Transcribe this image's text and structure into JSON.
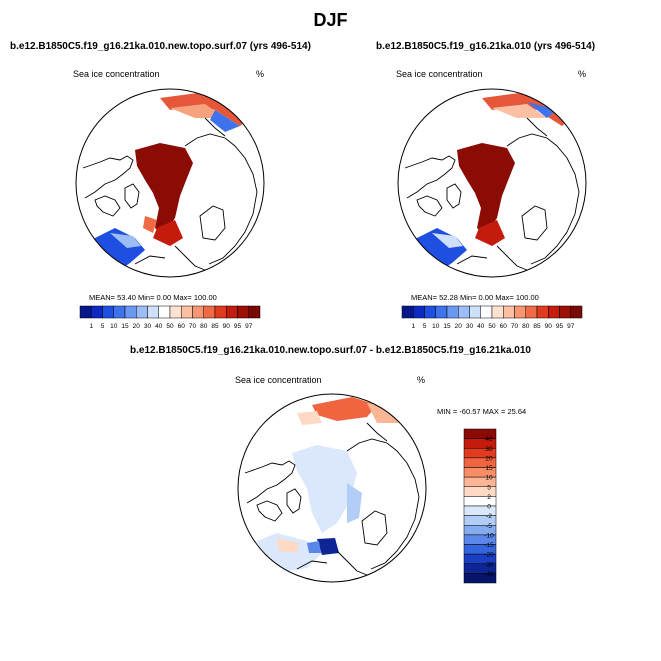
{
  "page": {
    "title": "DJF"
  },
  "panels": [
    {
      "title": "b.e12.B1850C5.f19_g16.21ka.010.new.topo.surf.07 (yrs 496-514)",
      "variable": "Sea ice concentration",
      "units": "%",
      "stats": "MEAN=  53.40  Min=   0.00  Max= 100.00"
    },
    {
      "title": "b.e12.B1850C5.f19_g16.21ka.010 (yrs 496-514)",
      "variable": "Sea ice concentration",
      "units": "%",
      "stats": "MEAN=  52.28  Min=   0.00  Max= 100.00"
    }
  ],
  "diff_panel": {
    "title": "b.e12.B1850C5.f19_g16.21ka.010.new.topo.surf.07 - b.e12.B1850C5.f19_g16.21ka.010",
    "variable": "Sea ice concentration",
    "units": "%",
    "stats": "MIN = -60.57 MAX =  25.64"
  },
  "colorbar_abs": {
    "levels": [
      "1",
      "5",
      "10",
      "15",
      "20",
      "30",
      "40",
      "50",
      "60",
      "70",
      "80",
      "85",
      "90",
      "95",
      "97"
    ],
    "colors": [
      "#08178a",
      "#0c2ac2",
      "#1f4fe0",
      "#3f73ee",
      "#6b98f2",
      "#9dbdf6",
      "#cfe0fb",
      "#ffffff",
      "#fde2d2",
      "#fbbfa3",
      "#f79673",
      "#f06a46",
      "#e03b1f",
      "#c41b0c",
      "#9c0f05",
      "#7a0903"
    ]
  },
  "colorbar_diff": {
    "levels": [
      "40",
      "30",
      "20",
      "15",
      "10",
      "5",
      "2",
      "0",
      "-2",
      "-5",
      "-10",
      "-15",
      "-20",
      "-30",
      "-40"
    ],
    "colors": [
      "#8c0a04",
      "#c41b0c",
      "#e03b1f",
      "#f0653f",
      "#f78e68",
      "#fbb696",
      "#fdd9c6",
      "#ffffff",
      "#dbe8fb",
      "#b3cef6",
      "#86acf0",
      "#5b87ea",
      "#3565de",
      "#1a3fc4",
      "#0d2595",
      "#06146a"
    ]
  }
}
